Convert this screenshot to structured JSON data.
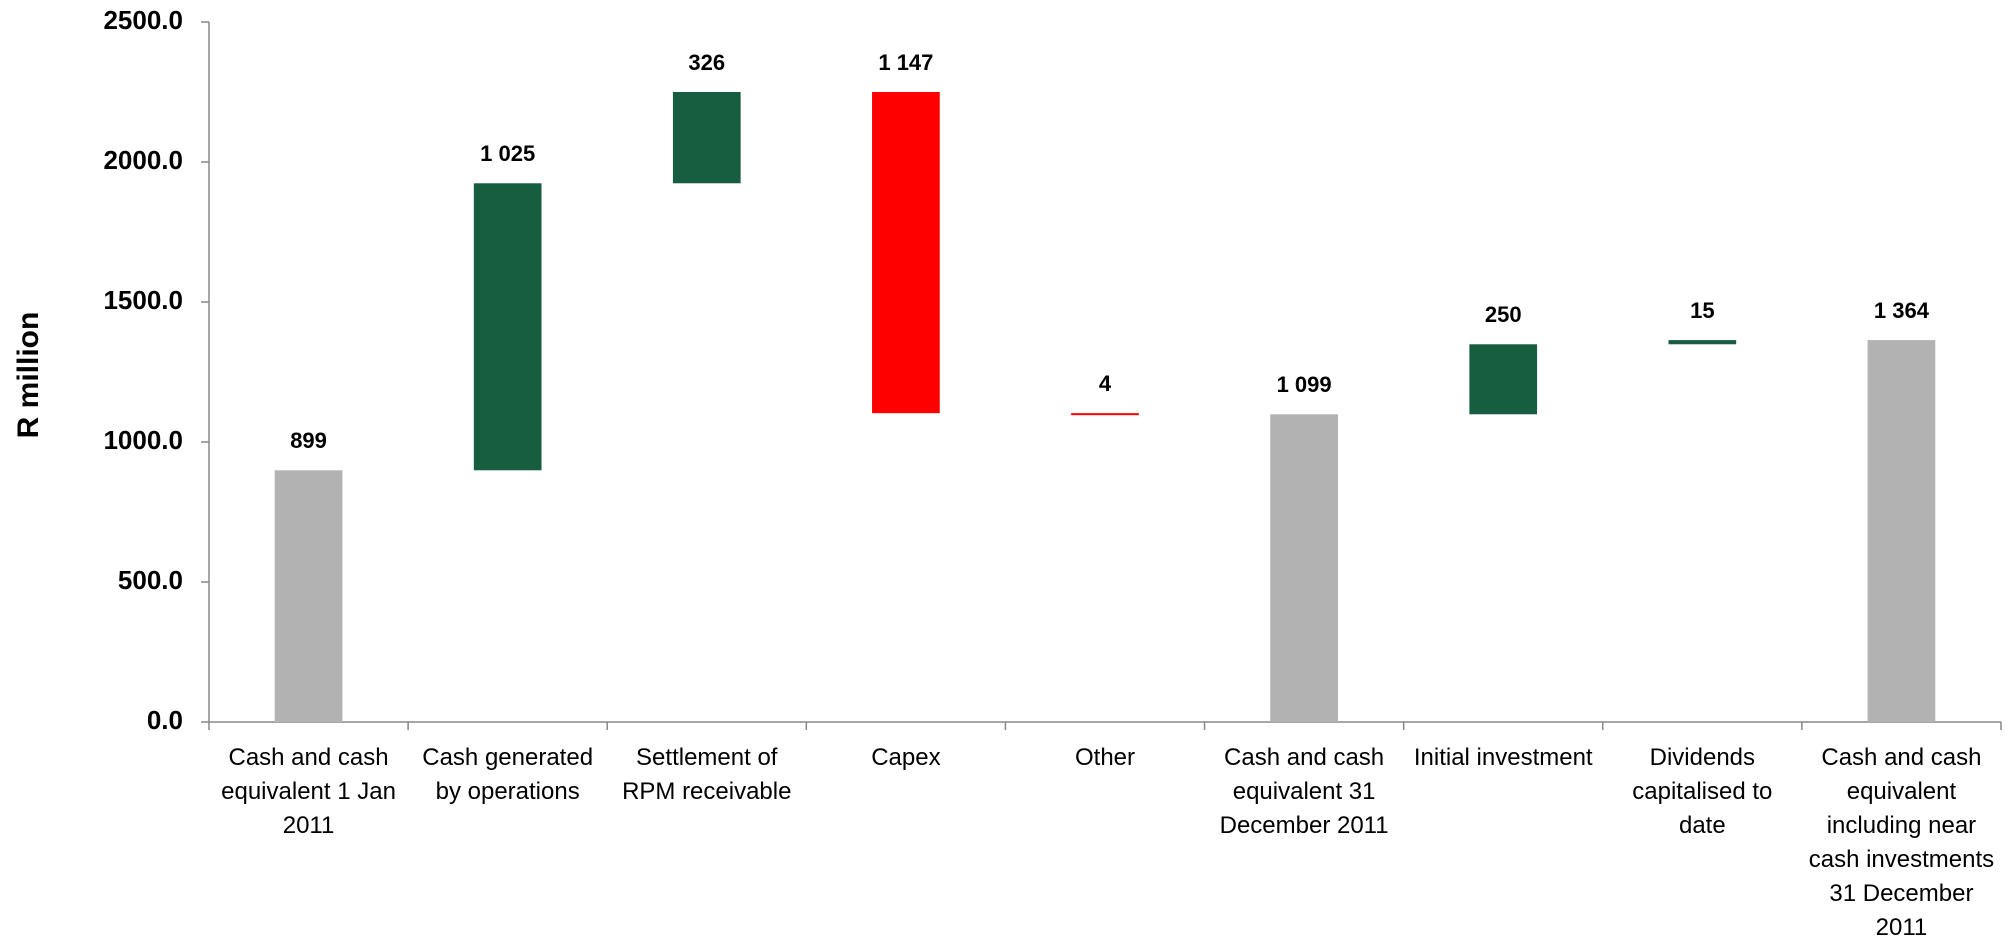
{
  "chart_data": {
    "type": "waterfall",
    "y_label": "R million",
    "categories": [
      "Cash and cash equivalent 1 Jan 2011",
      "Cash generated by operations",
      "Settlement of RPM receivable",
      "Capex",
      "Other",
      "Cash and cash equivalent 31 December 2011",
      "Initial investment",
      "Dividends capitalised to date",
      "Cash and cash equivalent including near cash investments 31 December 2011"
    ],
    "values": [
      899,
      1025,
      326,
      1147,
      4,
      1099,
      250,
      15,
      1364
    ],
    "value_labels": [
      "899",
      "1 025",
      "326",
      "1 147",
      "4",
      "1 099",
      "250",
      "15",
      "1 364"
    ],
    "kinds": [
      "total",
      "increase",
      "increase",
      "decrease",
      "decrease",
      "total",
      "increase",
      "increase",
      "total"
    ],
    "colors": {
      "total": "#b2b2b2",
      "increase": "#175e40",
      "decrease": "#ff0000"
    },
    "ylim": [
      0,
      2500
    ],
    "yticks": [
      {
        "value": 0,
        "label": "0.0"
      },
      {
        "value": 500,
        "label": "500.0"
      },
      {
        "value": 1000,
        "label": "1000.0"
      },
      {
        "value": 1500,
        "label": "1500.0"
      },
      {
        "value": 2000,
        "label": "2000.0"
      },
      {
        "value": 2500,
        "label": "2500.0"
      }
    ]
  }
}
